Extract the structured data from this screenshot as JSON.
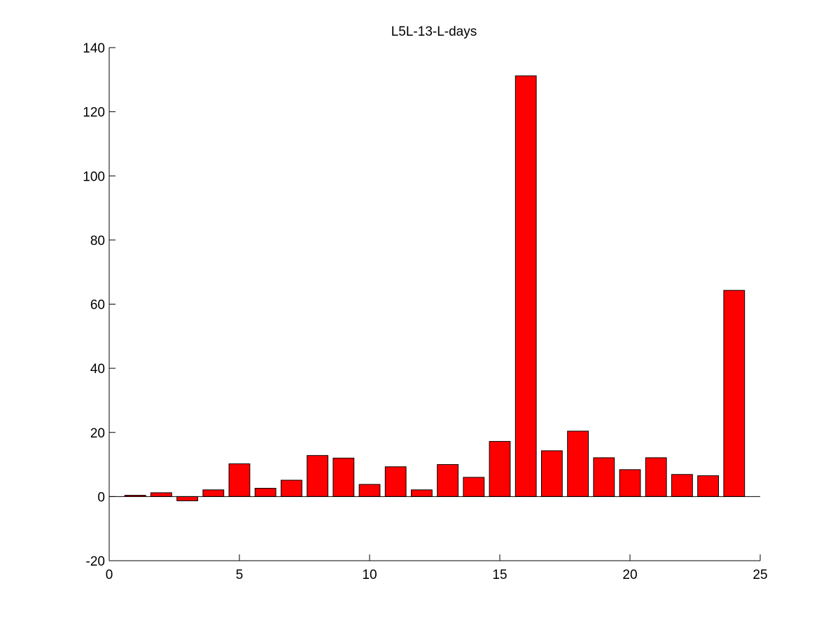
{
  "chart_data": {
    "type": "bar",
    "title": "L5L-13-L-days",
    "xlabel": "",
    "ylabel": "",
    "x": [
      1,
      2,
      3,
      4,
      5,
      6,
      7,
      8,
      9,
      10,
      11,
      12,
      13,
      14,
      15,
      16,
      17,
      18,
      19,
      20,
      21,
      22,
      23,
      24
    ],
    "values": [
      0.4,
      1.2,
      -1.3,
      2.1,
      10.2,
      2.6,
      5.1,
      12.8,
      12.0,
      3.8,
      9.3,
      2.1,
      10.0,
      6.0,
      17.2,
      131.2,
      14.3,
      20.4,
      12.1,
      8.4,
      12.1,
      6.9,
      6.5,
      64.3
    ],
    "xlim": [
      0,
      25
    ],
    "ylim": [
      -20,
      140
    ],
    "xticks": [
      "0",
      "5",
      "10",
      "15",
      "20",
      "25"
    ],
    "yticks": [
      "-20",
      "0",
      "20",
      "40",
      "60",
      "80",
      "100",
      "120",
      "140"
    ],
    "bar_color": "#ff0000",
    "grid": false,
    "legend": "none"
  }
}
